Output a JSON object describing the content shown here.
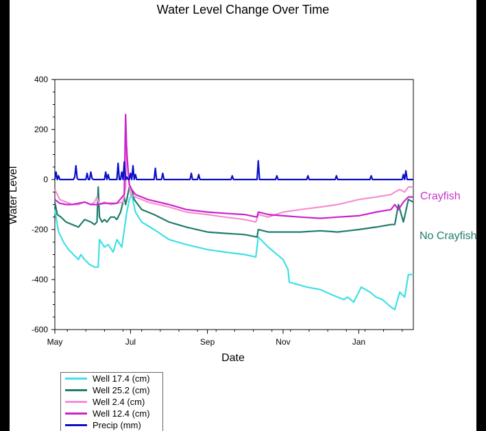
{
  "chart_data": {
    "type": "line",
    "title": "Water Level Change Over Time",
    "xlabel": "Date",
    "ylabel": "Water Level",
    "x_tick_labels": [
      "May",
      "Jul",
      "Sep",
      "Nov",
      "Jan"
    ],
    "y_ticks": [
      400,
      200,
      0,
      -200,
      -400,
      -600
    ],
    "ylim": [
      -600,
      400
    ],
    "xlim": [
      "2000-05-01",
      "2001-02-14"
    ],
    "x_ticks": [
      "2000-05-01",
      "2000-07-01",
      "2000-09-01",
      "2000-11-01",
      "2001-01-01"
    ],
    "legend_position": "bottom-left",
    "annotations": [
      {
        "text": "Crayfish",
        "color": "#cc33cc"
      },
      {
        "text": "No Crayfish",
        "color": "#1e7c6a"
      }
    ],
    "series": [
      {
        "name": "Well 17.4 (cm)",
        "color": "#3de0e6",
        "x": [
          "2000-05-01",
          "2000-05-04",
          "2000-05-08",
          "2000-05-12",
          "2000-05-16",
          "2000-05-20",
          "2000-05-22",
          "2000-05-25",
          "2000-05-29",
          "2000-06-02",
          "2000-06-05",
          "2000-06-06",
          "2000-06-10",
          "2000-06-13",
          "2000-06-17",
          "2000-06-20",
          "2000-06-24",
          "2000-06-28",
          "2000-06-30",
          "2000-07-02",
          "2000-07-05",
          "2000-07-10",
          "2000-07-20",
          "2000-08-01",
          "2000-08-15",
          "2000-09-01",
          "2000-09-15",
          "2000-10-01",
          "2000-10-10",
          "2000-10-12",
          "2000-10-20",
          "2000-11-01",
          "2000-11-05",
          "2000-11-06",
          "2000-11-20",
          "2000-12-01",
          "2000-12-10",
          "2000-12-15",
          "2000-12-20",
          "2000-12-23",
          "2000-12-28",
          "2001-01-03",
          "2001-01-10",
          "2001-01-15",
          "2001-01-20",
          "2001-01-27",
          "2001-01-30",
          "2001-02-03",
          "2001-02-07",
          "2001-02-10",
          "2001-02-14"
        ],
        "values": [
          -120,
          -210,
          -250,
          -280,
          -300,
          -320,
          -300,
          -320,
          -340,
          -350,
          -350,
          -240,
          -270,
          -260,
          -290,
          -240,
          -270,
          -130,
          -80,
          -60,
          -130,
          -170,
          -200,
          -240,
          -260,
          -280,
          -290,
          -300,
          -310,
          -230,
          -270,
          -320,
          -360,
          -410,
          -430,
          -440,
          -460,
          -470,
          -480,
          -470,
          -490,
          -430,
          -450,
          -470,
          -480,
          -510,
          -520,
          -450,
          -470,
          -380,
          -380
        ]
      },
      {
        "name": "Well 25.2 (cm)",
        "color": "#1e7c6a",
        "x": [
          "2000-05-01",
          "2000-05-03",
          "2000-05-06",
          "2000-05-10",
          "2000-05-15",
          "2000-05-20",
          "2000-05-25",
          "2000-05-30",
          "2000-06-02",
          "2000-06-04",
          "2000-06-05",
          "2000-06-06",
          "2000-06-08",
          "2000-06-10",
          "2000-06-12",
          "2000-06-15",
          "2000-06-18",
          "2000-06-20",
          "2000-06-23",
          "2000-06-26",
          "2000-06-27",
          "2000-06-28",
          "2000-06-30",
          "2000-07-02",
          "2000-07-04",
          "2000-07-10",
          "2000-07-20",
          "2000-08-01",
          "2000-08-15",
          "2000-09-01",
          "2000-09-15",
          "2000-10-01",
          "2000-10-11",
          "2000-10-12",
          "2000-10-20",
          "2000-11-01",
          "2000-11-15",
          "2000-12-01",
          "2000-12-15",
          "2001-01-01",
          "2001-01-15",
          "2001-01-27",
          "2001-01-30",
          "2001-02-02",
          "2001-02-06",
          "2001-02-10",
          "2001-02-14"
        ],
        "values": [
          -90,
          -140,
          -150,
          -170,
          -180,
          -190,
          -160,
          -170,
          -180,
          -170,
          -30,
          -150,
          -170,
          -160,
          -170,
          -150,
          -150,
          -160,
          -130,
          -70,
          -100,
          -80,
          -30,
          -40,
          -80,
          -120,
          -140,
          -170,
          -190,
          -210,
          -215,
          -220,
          -230,
          -200,
          -210,
          -210,
          -210,
          -205,
          -210,
          -200,
          -190,
          -180,
          -180,
          -100,
          -170,
          -80,
          -90
        ]
      },
      {
        "name": "Well 2.4 (cm)",
        "color": "#f58fd0",
        "x": [
          "2000-05-01",
          "2000-05-05",
          "2000-05-10",
          "2000-05-15",
          "2000-05-20",
          "2000-05-25",
          "2000-05-30",
          "2000-06-02",
          "2000-06-04",
          "2000-06-06",
          "2000-06-10",
          "2000-06-15",
          "2000-06-20",
          "2000-06-25",
          "2000-06-27",
          "2000-06-28",
          "2000-06-29",
          "2000-07-01",
          "2000-07-05",
          "2000-07-15",
          "2000-08-01",
          "2000-08-15",
          "2000-09-01",
          "2000-09-15",
          "2000-10-01",
          "2000-10-10",
          "2000-10-12",
          "2000-10-20",
          "2000-11-01",
          "2000-11-15",
          "2000-12-01",
          "2000-12-15",
          "2001-01-01",
          "2001-01-15",
          "2001-01-27",
          "2001-01-30",
          "2001-02-03",
          "2001-02-07",
          "2001-02-10",
          "2001-02-14"
        ],
        "values": [
          -40,
          -80,
          -90,
          -100,
          -100,
          -90,
          -100,
          -90,
          -70,
          -100,
          -90,
          -100,
          -95,
          -90,
          -30,
          130,
          30,
          -60,
          -70,
          -90,
          -110,
          -130,
          -140,
          -150,
          -160,
          -170,
          -140,
          -150,
          -130,
          -120,
          -110,
          -100,
          -80,
          -70,
          -60,
          -50,
          -40,
          -50,
          -30,
          -30
        ]
      },
      {
        "name": "Well 12.4 (cm)",
        "color": "#cc22cc",
        "x": [
          "2000-05-01",
          "2000-05-05",
          "2000-05-10",
          "2000-05-15",
          "2000-05-20",
          "2000-05-25",
          "2000-05-30",
          "2000-06-04",
          "2000-06-10",
          "2000-06-20",
          "2000-06-26",
          "2000-06-27",
          "2000-06-28",
          "2000-06-30",
          "2000-07-02",
          "2000-07-05",
          "2000-07-15",
          "2000-08-01",
          "2000-08-15",
          "2000-09-01",
          "2000-09-15",
          "2000-10-01",
          "2000-10-11",
          "2000-10-12",
          "2000-10-20",
          "2000-11-01",
          "2000-11-15",
          "2000-12-01",
          "2000-12-15",
          "2001-01-01",
          "2001-01-15",
          "2001-01-27",
          "2001-01-30",
          "2001-02-02",
          "2001-02-06",
          "2001-02-10",
          "2001-02-14"
        ],
        "values": [
          -80,
          -95,
          -100,
          -100,
          -95,
          -90,
          -100,
          -100,
          -95,
          -95,
          -60,
          260,
          100,
          -20,
          -40,
          -60,
          -80,
          -100,
          -120,
          -130,
          -135,
          -140,
          -150,
          -130,
          -140,
          -145,
          -150,
          -155,
          -150,
          -145,
          -130,
          -120,
          -100,
          -120,
          -90,
          -70,
          -70
        ]
      },
      {
        "name": "Precip (mm)",
        "color": "#0a10c8",
        "x": [
          "2000-05-01",
          "2000-05-02",
          "2000-05-03",
          "2000-05-04",
          "2000-05-05",
          "2000-05-16",
          "2000-05-17",
          "2000-05-18",
          "2000-05-19",
          "2000-05-20",
          "2000-05-26",
          "2000-05-27",
          "2000-05-28",
          "2000-05-29",
          "2000-05-30",
          "2000-05-31",
          "2000-06-01",
          "2000-06-10",
          "2000-06-11",
          "2000-06-12",
          "2000-06-13",
          "2000-06-14",
          "2000-06-20",
          "2000-06-21",
          "2000-06-22",
          "2000-06-23",
          "2000-06-24",
          "2000-06-25",
          "2000-06-26",
          "2000-06-27",
          "2000-06-28",
          "2000-06-29",
          "2000-06-30",
          "2000-07-01",
          "2000-07-02",
          "2000-07-03",
          "2000-07-04",
          "2000-07-05",
          "2000-07-06",
          "2000-07-07",
          "2000-07-20",
          "2000-07-21",
          "2000-07-22",
          "2000-07-26",
          "2000-07-27",
          "2000-07-28",
          "2000-08-18",
          "2000-08-19",
          "2000-08-20",
          "2000-08-24",
          "2000-08-25",
          "2000-08-26",
          "2000-09-20",
          "2000-09-21",
          "2000-09-22",
          "2000-10-11",
          "2000-10-12",
          "2000-10-13",
          "2000-10-26",
          "2000-10-27",
          "2000-10-28",
          "2000-11-20",
          "2000-11-21",
          "2000-11-22",
          "2000-12-13",
          "2000-12-14",
          "2000-12-15",
          "2001-01-10",
          "2001-01-11",
          "2001-01-12",
          "2001-02-05",
          "2001-02-06",
          "2001-02-07",
          "2001-02-08",
          "2001-02-09",
          "2001-02-14"
        ],
        "values": [
          0,
          30,
          0,
          15,
          0,
          0,
          10,
          55,
          5,
          0,
          0,
          25,
          0,
          0,
          30,
          5,
          0,
          0,
          30,
          0,
          20,
          0,
          0,
          65,
          0,
          0,
          30,
          0,
          70,
          0,
          10,
          0,
          0,
          25,
          0,
          55,
          0,
          20,
          0,
          0,
          0,
          45,
          0,
          0,
          25,
          0,
          0,
          25,
          0,
          0,
          20,
          0,
          0,
          15,
          0,
          0,
          75,
          0,
          0,
          15,
          0,
          0,
          15,
          0,
          0,
          15,
          0,
          0,
          15,
          0,
          0,
          20,
          0,
          35,
          0,
          0
        ]
      }
    ]
  }
}
